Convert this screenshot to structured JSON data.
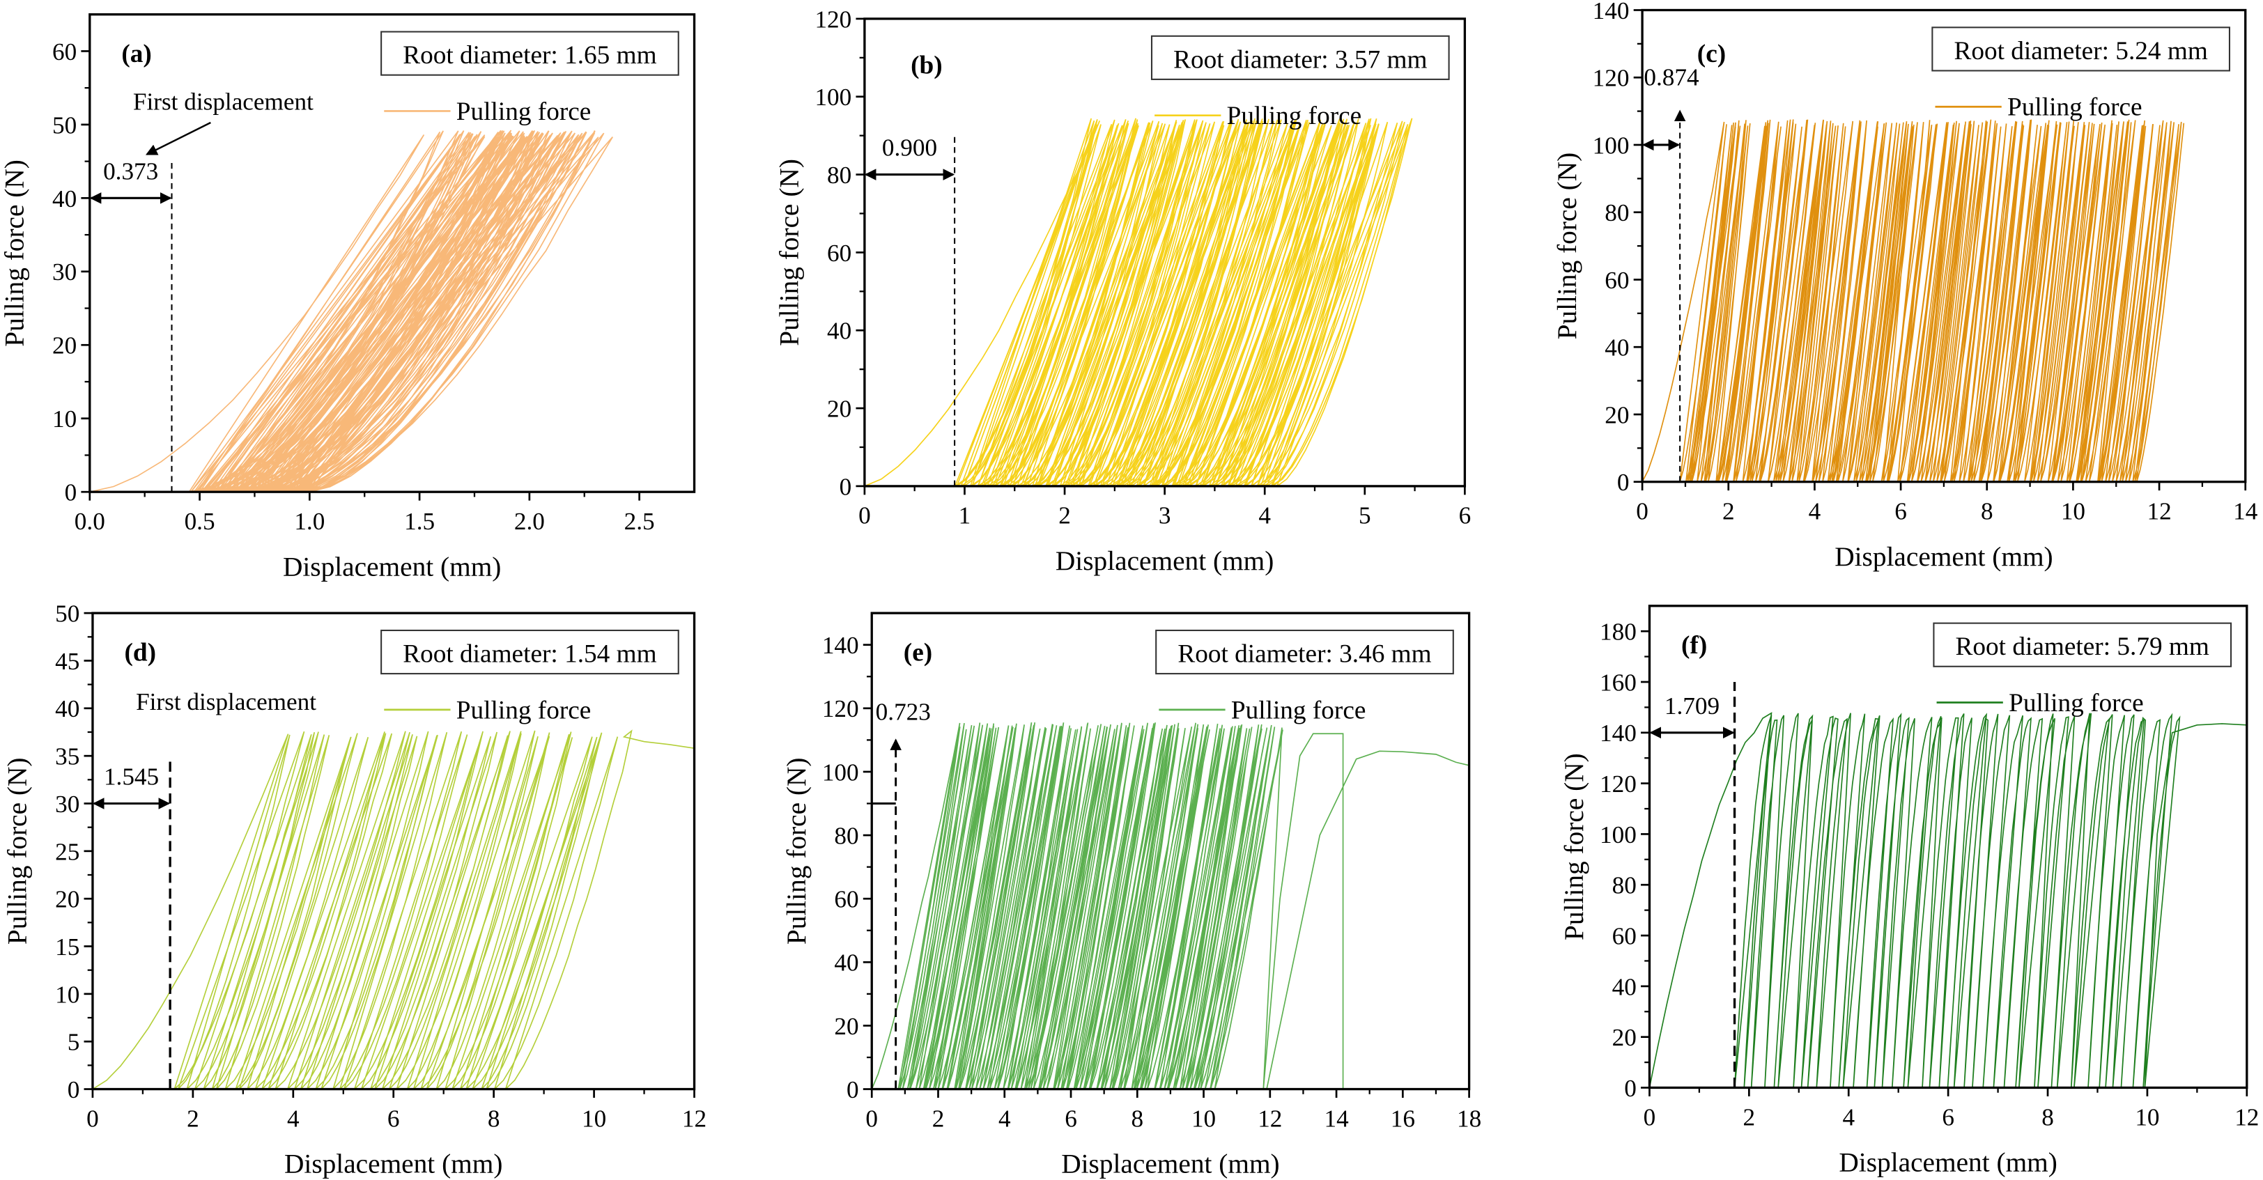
{
  "chart_data": [
    {
      "type": "line",
      "panel": "(a)",
      "color": "#f8b878",
      "root_diameter": "Root diameter: 1.65 mm",
      "legend": "Pulling force",
      "xlabel": "Displacement (mm)",
      "ylabel": "Pulling force (N)",
      "xlim": [
        0,
        2.75
      ],
      "ylim": [
        0,
        65
      ],
      "xticks": [
        "0.0",
        "0.5",
        "1.0",
        "1.5",
        "2.0",
        "2.5"
      ],
      "yticks": [
        "0",
        "10",
        "20",
        "30",
        "40",
        "50",
        "60"
      ],
      "first_displacement": {
        "value": "0.373",
        "x": 0.373,
        "arrow_y": 40,
        "dash_top": 45,
        "style": "horizontal",
        "caption": "First displacement"
      },
      "cycles": {
        "count": 80,
        "peak_force": 49,
        "start_range": [
          0.45,
          1.0
        ],
        "loading_width": [
          1.1,
          1.45
        ],
        "shape": 1.6,
        "first_start": 0.0,
        "first_width": 1.52
      }
    },
    {
      "type": "line",
      "panel": "(b)",
      "color": "#f6d21c",
      "root_diameter": "Root diameter: 3.57 mm",
      "legend": "Pulling force",
      "xlabel": "Displacement (mm)",
      "ylabel": "Pulling force (N)",
      "xlim": [
        0,
        6
      ],
      "ylim": [
        0,
        120
      ],
      "xticks": [
        "0",
        "1",
        "2",
        "3",
        "4",
        "5",
        "6"
      ],
      "yticks": [
        "0",
        "20",
        "40",
        "60",
        "80",
        "100",
        "120"
      ],
      "first_displacement": {
        "value": "0.900",
        "x": 0.9,
        "arrow_y": 80,
        "dash_top": 90,
        "style": "horizontal"
      },
      "cycles": {
        "count": 120,
        "peak_force": 94,
        "start_range": [
          0.9,
          4.1
        ],
        "loading_width": [
          1.2,
          1.45
        ],
        "shape": 1.5,
        "first_start": 0.0,
        "first_width": 2.35
      }
    },
    {
      "type": "line",
      "panel": "(c)",
      "color": "#e0900f",
      "root_diameter": "Root diameter: 5.24 mm",
      "legend": "Pulling force",
      "xlabel": "Displacement (mm)",
      "ylabel": "Pulling force (N)",
      "xlim": [
        0,
        14
      ],
      "ylim": [
        0,
        140
      ],
      "xticks": [
        "0",
        "2",
        "4",
        "6",
        "8",
        "10",
        "12",
        "14"
      ],
      "yticks": [
        "0",
        "20",
        "40",
        "60",
        "80",
        "100",
        "120",
        "140"
      ],
      "first_displacement": {
        "value": "0.874",
        "x": 0.874,
        "arrow_y": 100,
        "dash_top": 110,
        "style": "horizontal-up"
      },
      "cycles": {
        "count": 150,
        "peak_force": 107,
        "start_range": [
          0.874,
          11.5
        ],
        "loading_width": [
          0.95,
          1.15
        ],
        "shape": 1.3,
        "first_start": 0.0,
        "first_width": 1.9
      }
    },
    {
      "type": "line",
      "panel": "(d)",
      "color": "#b4cf3a",
      "root_diameter": "Root diameter: 1.54 mm",
      "legend": "Pulling force",
      "xlabel": "Displacement (mm)",
      "ylabel": "Pulling force (N)",
      "xlim": [
        0,
        12
      ],
      "ylim": [
        0,
        50
      ],
      "xticks": [
        "0",
        "2",
        "4",
        "6",
        "8",
        "10",
        "12"
      ],
      "yticks": [
        "0",
        "5",
        "10",
        "15",
        "20",
        "25",
        "30",
        "35",
        "40",
        "45",
        "50"
      ],
      "first_displacement": {
        "value": "1.545",
        "x": 1.545,
        "arrow_y": 30,
        "dash_top": 35,
        "style": "horizontal",
        "caption": "First displacement"
      },
      "cycles": {
        "count": 45,
        "peak_force": 37.5,
        "start_range": [
          1.6,
          8.2
        ],
        "loading_width": [
          2.2,
          2.6
        ],
        "shape": 1.4,
        "first_start": 0.0,
        "first_width": 3.9,
        "tail": [
          [
            10.6,
            37
          ],
          [
            11.0,
            36.5
          ],
          [
            11.5,
            36.2
          ],
          [
            12.0,
            35.8
          ]
        ]
      }
    },
    {
      "type": "line",
      "panel": "(e)",
      "color": "#5cb050",
      "root_diameter": "Root diameter: 3.46 mm",
      "legend": "Pulling force",
      "xlabel": "Displacement (mm)",
      "ylabel": "Pulling force (N)",
      "xlim": [
        0,
        18
      ],
      "ylim": [
        0,
        150
      ],
      "xticks": [
        "0",
        "2",
        "4",
        "6",
        "8",
        "10",
        "12",
        "14",
        "16",
        "18"
      ],
      "yticks": [
        "0",
        "20",
        "40",
        "60",
        "80",
        "100",
        "120",
        "140"
      ],
      "first_displacement": {
        "value": "0.723",
        "x": 0.723,
        "arrow_y": 90,
        "dash_top": 110,
        "style": "vertical-up"
      },
      "cycles": {
        "count": 110,
        "peak_force": 115,
        "start_range": [
          0.8,
          10.3
        ],
        "loading_width": [
          1.8,
          2.2
        ],
        "shape": 1.2,
        "first_start": 0.0,
        "first_width": 2.65,
        "tail": [
          [
            11.8,
            0
          ],
          [
            12.3,
            60
          ],
          [
            12.9,
            105
          ],
          [
            13.3,
            112
          ],
          [
            14.2,
            112
          ],
          [
            14.2,
            0
          ],
          [
            14.2,
            0
          ],
          [
            11.9,
            0
          ],
          [
            13.5,
            80
          ],
          [
            14.6,
            104
          ],
          [
            15.3,
            106.5
          ],
          [
            16.0,
            106.3
          ],
          [
            17.0,
            105.5
          ],
          [
            17.6,
            103
          ],
          [
            18.0,
            102
          ]
        ]
      }
    },
    {
      "type": "line",
      "panel": "(f)",
      "color": "#1f7f1f",
      "root_diameter": "Root diameter: 5.79 mm",
      "legend": "Pulling force",
      "xlabel": "Displacement (mm)",
      "ylabel": "Pulling force (N)",
      "xlim": [
        0,
        12
      ],
      "ylim": [
        0,
        190
      ],
      "xticks": [
        "0",
        "2",
        "4",
        "6",
        "8",
        "10",
        "12"
      ],
      "yticks": [
        "0",
        "20",
        "40",
        "60",
        "80",
        "100",
        "120",
        "140",
        "160",
        "180"
      ],
      "first_displacement": {
        "value": "1.709",
        "x": 1.709,
        "arrow_y": 140,
        "dash_top": 160,
        "style": "horizontal"
      },
      "cycles": {
        "count": 45,
        "peak_force": 147,
        "start_range": [
          1.709,
          9.9
        ],
        "loading_width": [
          0.65,
          0.8
        ],
        "shape": 0.6,
        "first_start": 0.0,
        "first_width": 2.45,
        "tail": [
          [
            9.95,
            0
          ],
          [
            10.2,
            100
          ],
          [
            10.5,
            140
          ],
          [
            11.0,
            143
          ],
          [
            11.5,
            143.5
          ],
          [
            12.0,
            143
          ]
        ]
      }
    }
  ]
}
